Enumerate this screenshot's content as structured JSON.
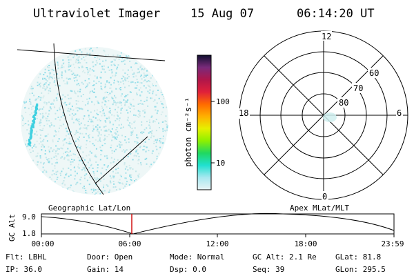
{
  "header": {
    "title": "Ultraviolet Imager",
    "date": "15 Aug 07",
    "time": "06:14:20 UT"
  },
  "colorbar": {
    "label": "photon cm⁻²s⁻¹",
    "tick_labels": [
      "100",
      "10"
    ],
    "colors": [
      "#101030",
      "#7a2a7a",
      "#b0164a",
      "#e0203a",
      "#ff6a00",
      "#ffb000",
      "#e6f000",
      "#8ef000",
      "#20d860",
      "#20e0d0",
      "#a8e8f0",
      "#e8f4f6"
    ]
  },
  "polar_plot": {
    "mlt_labels": {
      "top": "12",
      "left": "18",
      "right": "6",
      "bottom": "0"
    },
    "lat_labels": [
      "60",
      "70",
      "80"
    ]
  },
  "timeline": {
    "y_axis_label": "GC Alt",
    "y_max": "9.0",
    "y_min": "1.8",
    "left_title": "Geographic Lat/Lon",
    "right_title": "Apex MLat/MLT",
    "time_ticks": [
      "00:00",
      "06:00",
      "12:00",
      "18:00",
      "23:59"
    ],
    "current_marker_color": "#d01010"
  },
  "status": {
    "filter": "Flt: LBHL",
    "door": "Door: Open",
    "mode": "Mode: Normal",
    "gc_alt": "GC Alt: 2.1 Re",
    "glat": "GLat:  81.8",
    "ip": "IP: 36.0",
    "gain": "Gain: 14",
    "dsp": "Dsp:    0.0",
    "seq": "Seq: 39",
    "glon": "GLon: 295.5"
  }
}
